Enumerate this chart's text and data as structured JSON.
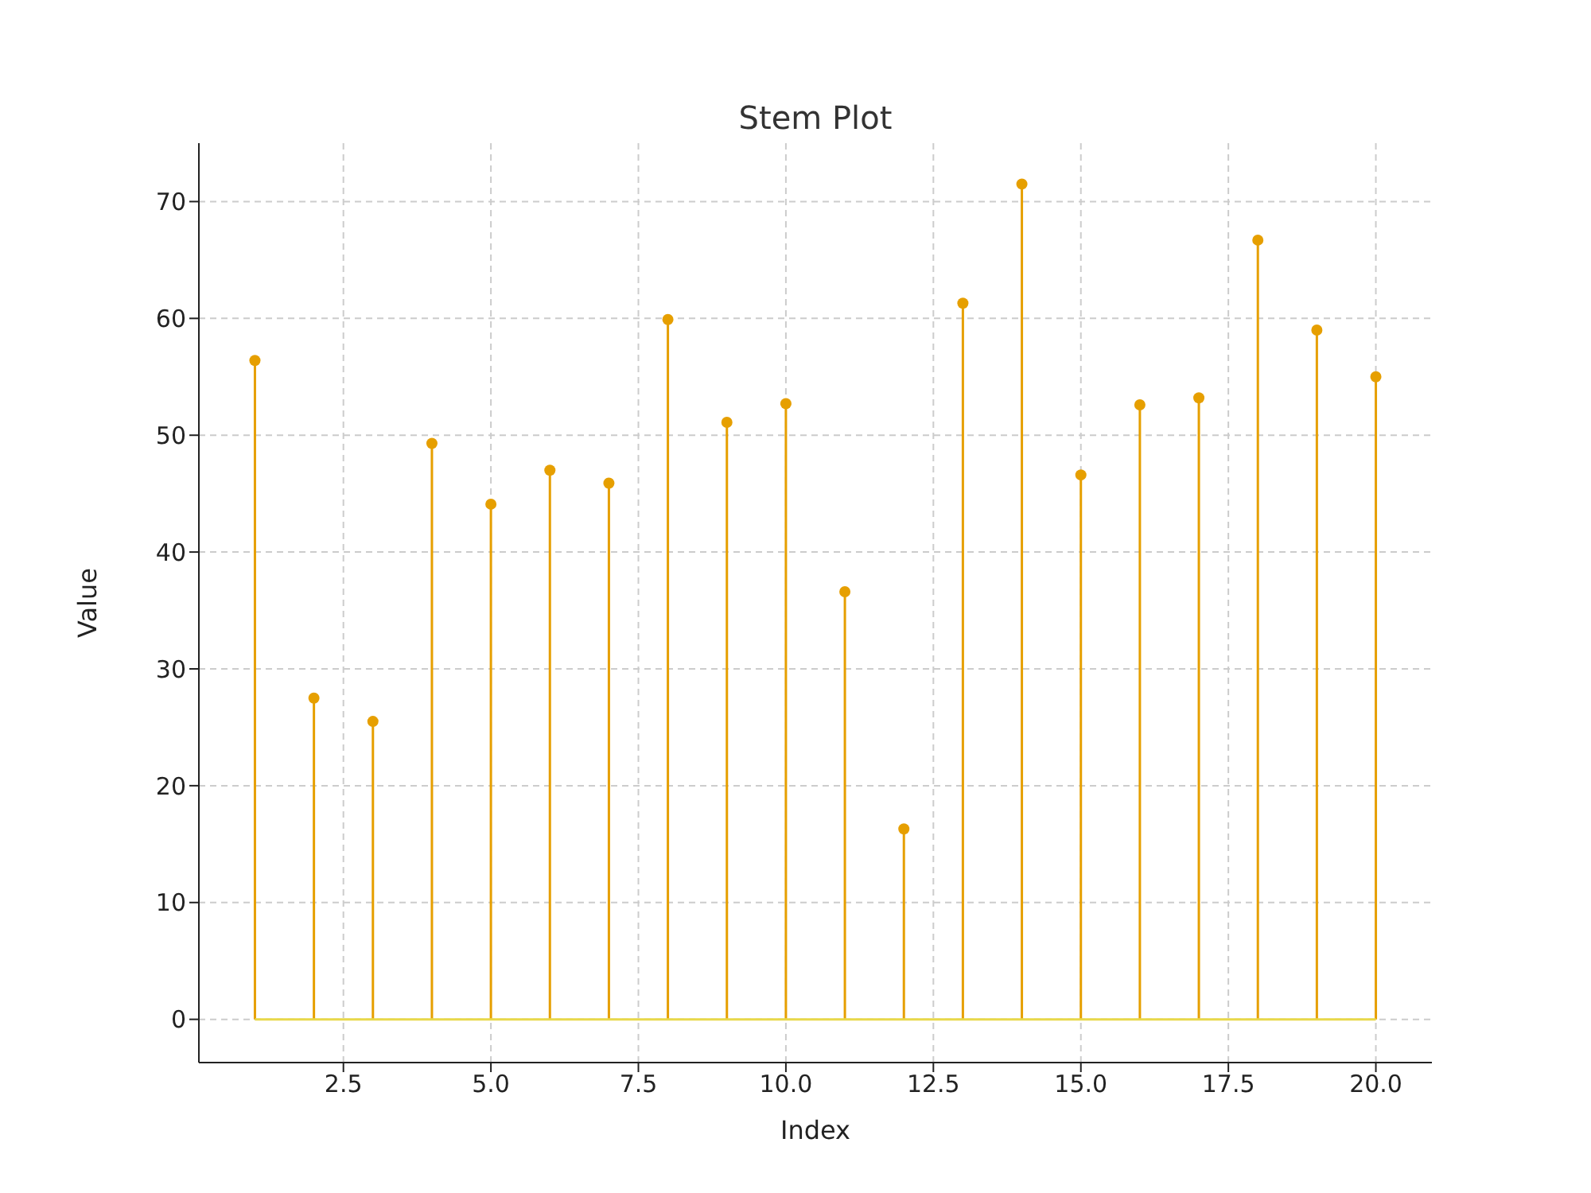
{
  "chart_data": {
    "type": "lollipop",
    "title": "Stem Plot",
    "xlabel": "Index",
    "ylabel": "Value",
    "x": [
      1,
      2,
      3,
      4,
      5,
      6,
      7,
      8,
      9,
      10,
      11,
      12,
      13,
      14,
      15,
      16,
      17,
      18,
      19,
      20
    ],
    "values": [
      56.4,
      27.5,
      25.5,
      49.3,
      44.1,
      47.0,
      45.9,
      59.9,
      51.1,
      52.7,
      36.6,
      16.3,
      61.3,
      71.5,
      46.6,
      52.6,
      53.2,
      66.7,
      59.0,
      55.0
    ],
    "color": "#e69f00",
    "xlim": [
      0.05,
      20.95
    ],
    "xticks": [
      {
        "value": 2.5,
        "label": "2.5"
      },
      {
        "value": 5,
        "label": "5.0"
      },
      {
        "value": 7.5,
        "label": "7.5"
      },
      {
        "value": 10,
        "label": "10.0"
      },
      {
        "value": 12.5,
        "label": "12.5"
      },
      {
        "value": 15,
        "label": "15.0"
      },
      {
        "value": 17.5,
        "label": "17.5"
      },
      {
        "value": 20,
        "label": "20.0"
      }
    ],
    "ylim": [
      -3.7,
      75
    ],
    "yticks": [
      0,
      10,
      20,
      30,
      40,
      50,
      60,
      70
    ],
    "ref_lines": [
      {
        "axis": "y",
        "value": 0,
        "color": "#e8d84a"
      }
    ],
    "grid": true,
    "marker": "circle",
    "line_style": "solid"
  }
}
